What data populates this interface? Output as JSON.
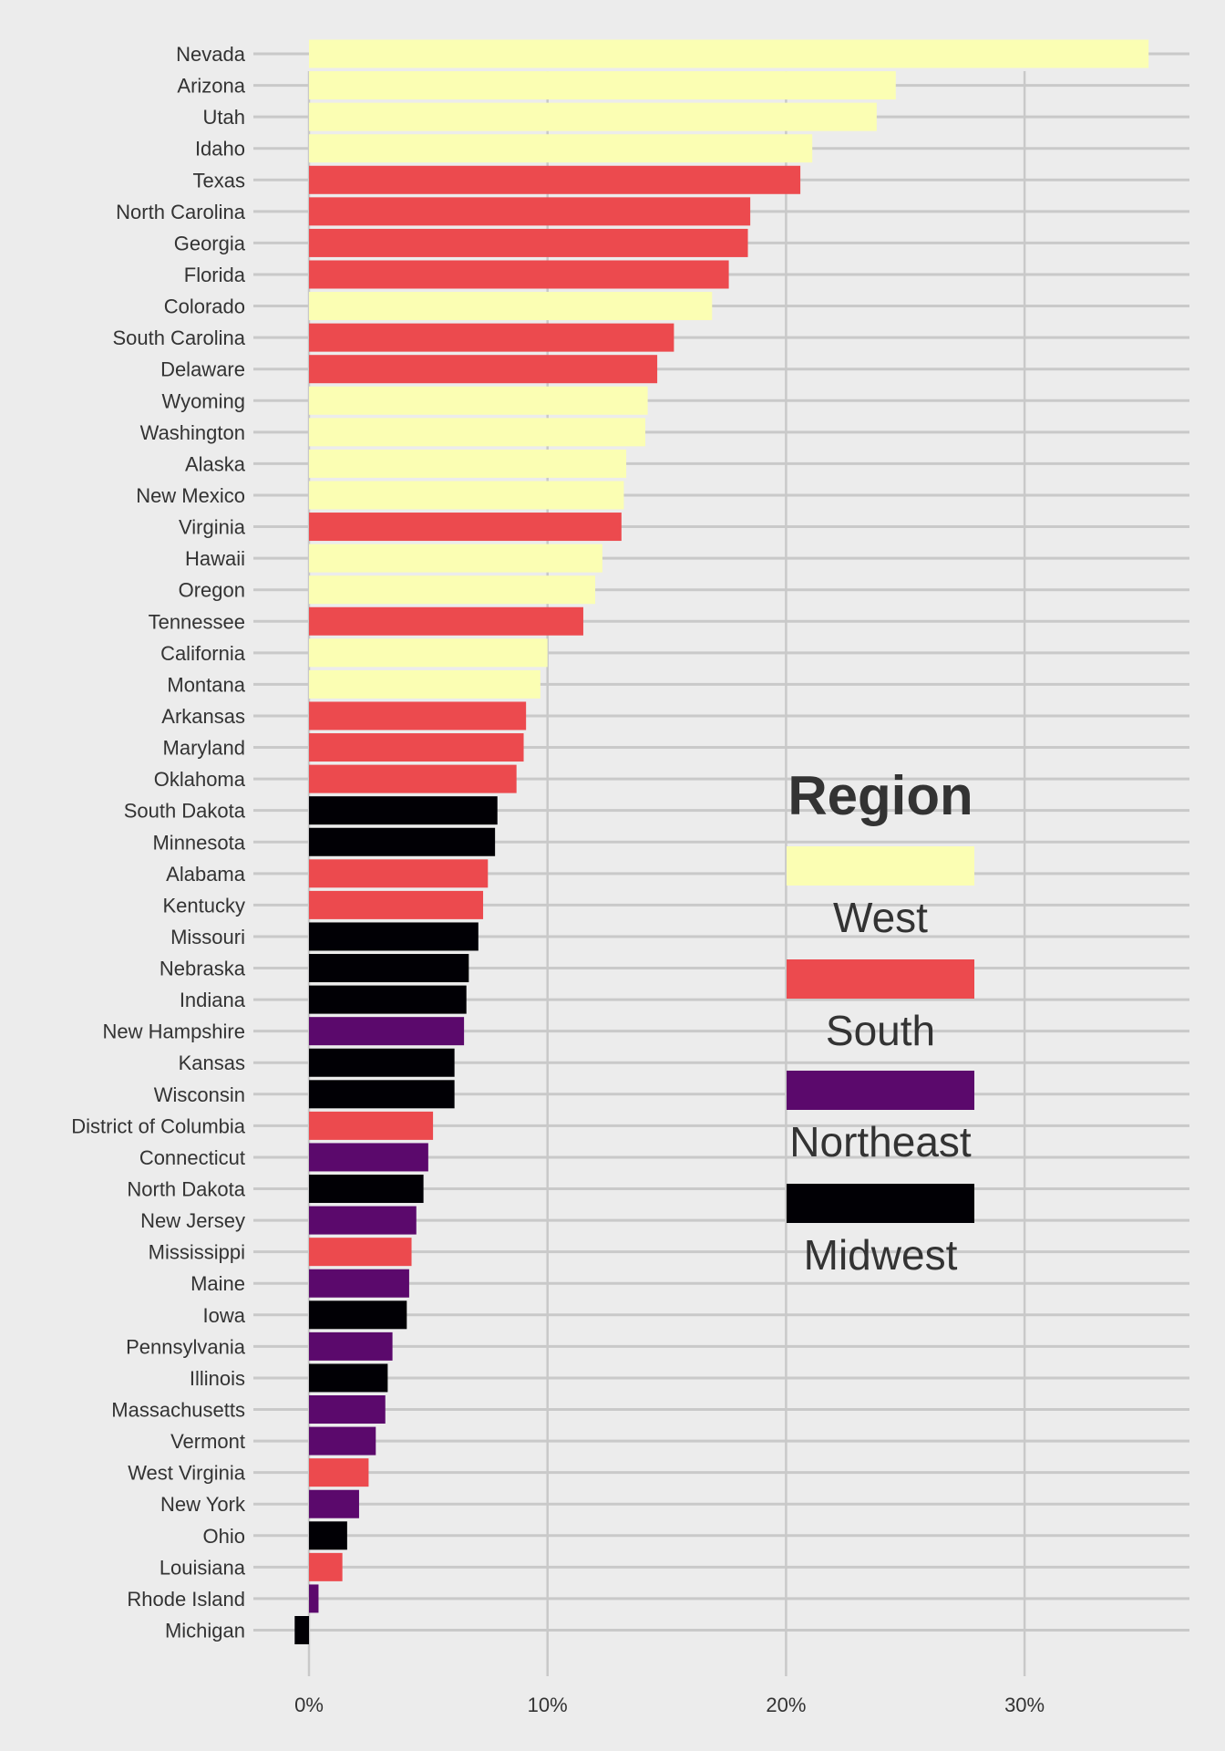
{
  "chart_data": {
    "type": "bar",
    "orientation": "horizontal",
    "title": "",
    "xlabel": "",
    "ylabel": "",
    "xlim": [
      -1,
      37
    ],
    "x_ticks": [
      0,
      10,
      20,
      30
    ],
    "x_tick_labels": [
      "0%",
      "10%",
      "20%",
      "30%"
    ],
    "grid": true,
    "legend": {
      "title": "Region",
      "placement": "right",
      "entries": [
        {
          "name": "West",
          "color": "#fbfeb3"
        },
        {
          "name": "South",
          "color": "#ec4a4e"
        },
        {
          "name": "Northeast",
          "color": "#5b096c"
        },
        {
          "name": "Midwest",
          "color": "#010005"
        }
      ]
    },
    "categories": [
      "Nevada",
      "Arizona",
      "Utah",
      "Idaho",
      "Texas",
      "North Carolina",
      "Georgia",
      "Florida",
      "Colorado",
      "South Carolina",
      "Delaware",
      "Wyoming",
      "Washington",
      "Alaska",
      "New Mexico",
      "Virginia",
      "Hawaii",
      "Oregon",
      "Tennessee",
      "California",
      "Montana",
      "Arkansas",
      "Maryland",
      "Oklahoma",
      "South Dakota",
      "Minnesota",
      "Alabama",
      "Kentucky",
      "Missouri",
      "Nebraska",
      "Indiana",
      "New Hampshire",
      "Kansas",
      "Wisconsin",
      "District of Columbia",
      "Connecticut",
      "North Dakota",
      "New Jersey",
      "Mississippi",
      "Maine",
      "Iowa",
      "Pennsylvania",
      "Illinois",
      "Massachusetts",
      "Vermont",
      "West Virginia",
      "New York",
      "Ohio",
      "Louisiana",
      "Rhode Island",
      "Michigan"
    ],
    "values": [
      35.2,
      24.6,
      23.8,
      21.1,
      20.6,
      18.5,
      18.4,
      17.6,
      16.9,
      15.3,
      14.6,
      14.2,
      14.1,
      13.3,
      13.2,
      13.1,
      12.3,
      12.0,
      11.5,
      10.0,
      9.7,
      9.1,
      9.0,
      8.7,
      7.9,
      7.8,
      7.5,
      7.3,
      7.1,
      6.7,
      6.6,
      6.5,
      6.1,
      6.1,
      5.2,
      5.0,
      4.8,
      4.5,
      4.3,
      4.2,
      4.1,
      3.5,
      3.3,
      3.2,
      2.8,
      2.5,
      2.1,
      1.6,
      1.4,
      0.4,
      -0.6
    ],
    "regions": [
      "West",
      "West",
      "West",
      "West",
      "South",
      "South",
      "South",
      "South",
      "West",
      "South",
      "South",
      "West",
      "West",
      "West",
      "West",
      "South",
      "West",
      "West",
      "South",
      "West",
      "West",
      "South",
      "South",
      "South",
      "Midwest",
      "Midwest",
      "South",
      "South",
      "Midwest",
      "Midwest",
      "Midwest",
      "Northeast",
      "Midwest",
      "Midwest",
      "South",
      "Northeast",
      "Midwest",
      "Northeast",
      "South",
      "Northeast",
      "Midwest",
      "Northeast",
      "Midwest",
      "Northeast",
      "Northeast",
      "South",
      "Northeast",
      "Midwest",
      "South",
      "Northeast",
      "Midwest"
    ]
  }
}
